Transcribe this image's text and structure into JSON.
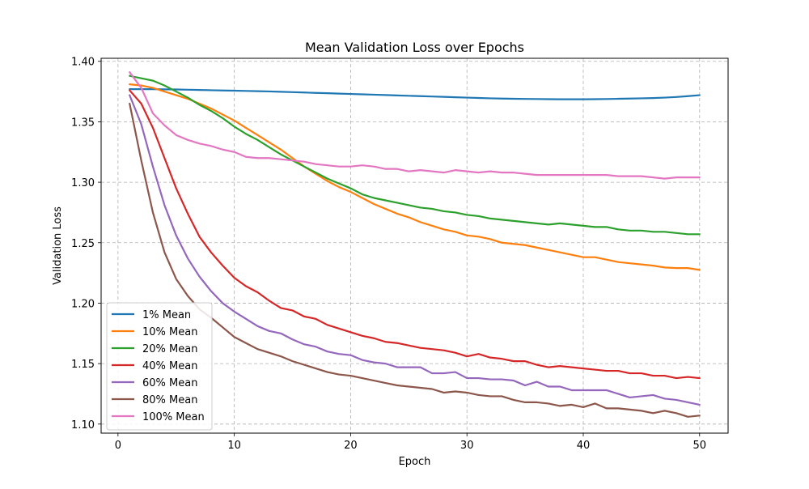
{
  "chart_data": {
    "type": "line",
    "title": "Mean Validation Loss over Epochs",
    "xlabel": "Epoch",
    "ylabel": "Validation Loss",
    "xlim": [
      -1.45,
      52.45
    ],
    "ylim": [
      1.0925,
      1.4025
    ],
    "xticks": [
      0,
      10,
      20,
      30,
      40,
      50
    ],
    "yticks": [
      1.1,
      1.15,
      1.2,
      1.25,
      1.3,
      1.35,
      1.4
    ],
    "grid": true,
    "legend_position": "lower-left",
    "x": [
      1,
      2,
      3,
      4,
      5,
      6,
      7,
      8,
      9,
      10,
      11,
      12,
      13,
      14,
      15,
      16,
      17,
      18,
      19,
      20,
      21,
      22,
      23,
      24,
      25,
      26,
      27,
      28,
      29,
      30,
      31,
      32,
      33,
      34,
      35,
      36,
      37,
      38,
      39,
      40,
      41,
      42,
      43,
      44,
      45,
      46,
      47,
      48,
      49,
      50
    ],
    "series": [
      {
        "name": "1% Mean",
        "color": "#1f77b4",
        "values": [
          1.377,
          1.377,
          1.377,
          1.3768,
          1.3767,
          1.3765,
          1.3763,
          1.3761,
          1.3759,
          1.3757,
          1.3755,
          1.3753,
          1.3751,
          1.3748,
          1.3745,
          1.3742,
          1.3739,
          1.3736,
          1.3733,
          1.373,
          1.3727,
          1.3724,
          1.3721,
          1.3718,
          1.3715,
          1.3712,
          1.3709,
          1.3706,
          1.3703,
          1.37,
          1.3697,
          1.3694,
          1.3692,
          1.369,
          1.3689,
          1.3688,
          1.3687,
          1.3686,
          1.3686,
          1.3686,
          1.3687,
          1.3688,
          1.369,
          1.3692,
          1.3694,
          1.3696,
          1.37,
          1.3705,
          1.3712,
          1.372
        ]
      },
      {
        "name": "10% Mean",
        "color": "#ff7f0e",
        "values": [
          1.381,
          1.38,
          1.378,
          1.375,
          1.372,
          1.369,
          1.365,
          1.361,
          1.356,
          1.351,
          1.345,
          1.339,
          1.333,
          1.327,
          1.32,
          1.313,
          1.307,
          1.301,
          1.296,
          1.292,
          1.287,
          1.282,
          1.278,
          1.274,
          1.271,
          1.267,
          1.264,
          1.261,
          1.259,
          1.256,
          1.255,
          1.253,
          1.25,
          1.249,
          1.248,
          1.246,
          1.244,
          1.242,
          1.24,
          1.238,
          1.238,
          1.236,
          1.234,
          1.233,
          1.232,
          1.231,
          1.2295,
          1.229,
          1.229,
          1.2275
        ]
      },
      {
        "name": "20% Mean",
        "color": "#2ca02c",
        "values": [
          1.388,
          1.386,
          1.384,
          1.38,
          1.375,
          1.37,
          1.364,
          1.359,
          1.353,
          1.346,
          1.34,
          1.335,
          1.329,
          1.323,
          1.318,
          1.313,
          1.308,
          1.303,
          1.299,
          1.295,
          1.29,
          1.287,
          1.285,
          1.283,
          1.281,
          1.279,
          1.278,
          1.276,
          1.275,
          1.273,
          1.272,
          1.27,
          1.269,
          1.268,
          1.267,
          1.266,
          1.265,
          1.266,
          1.265,
          1.264,
          1.263,
          1.263,
          1.261,
          1.26,
          1.26,
          1.259,
          1.259,
          1.258,
          1.257,
          1.257
        ]
      },
      {
        "name": "40% Mean",
        "color": "#d62728",
        "values": [
          1.376,
          1.365,
          1.345,
          1.32,
          1.295,
          1.274,
          1.255,
          1.242,
          1.231,
          1.221,
          1.214,
          1.209,
          1.202,
          1.196,
          1.194,
          1.189,
          1.187,
          1.182,
          1.179,
          1.176,
          1.173,
          1.171,
          1.168,
          1.167,
          1.165,
          1.163,
          1.162,
          1.161,
          1.159,
          1.156,
          1.158,
          1.155,
          1.154,
          1.152,
          1.152,
          1.149,
          1.147,
          1.148,
          1.147,
          1.146,
          1.145,
          1.144,
          1.144,
          1.142,
          1.142,
          1.14,
          1.14,
          1.138,
          1.139,
          1.138
        ]
      },
      {
        "name": "60% Mean",
        "color": "#9467bd",
        "values": [
          1.372,
          1.348,
          1.313,
          1.281,
          1.256,
          1.237,
          1.222,
          1.21,
          1.2,
          1.193,
          1.187,
          1.181,
          1.177,
          1.175,
          1.17,
          1.166,
          1.164,
          1.16,
          1.158,
          1.157,
          1.153,
          1.151,
          1.15,
          1.147,
          1.147,
          1.147,
          1.142,
          1.142,
          1.143,
          1.138,
          1.138,
          1.137,
          1.137,
          1.136,
          1.132,
          1.135,
          1.131,
          1.131,
          1.128,
          1.128,
          1.128,
          1.128,
          1.125,
          1.122,
          1.123,
          1.124,
          1.121,
          1.12,
          1.118,
          1.116
        ]
      },
      {
        "name": "80% Mean",
        "color": "#8c564b",
        "values": [
          1.365,
          1.318,
          1.275,
          1.242,
          1.22,
          1.206,
          1.195,
          1.188,
          1.18,
          1.172,
          1.167,
          1.162,
          1.159,
          1.156,
          1.152,
          1.149,
          1.146,
          1.143,
          1.141,
          1.14,
          1.138,
          1.136,
          1.134,
          1.132,
          1.131,
          1.13,
          1.129,
          1.126,
          1.127,
          1.126,
          1.124,
          1.123,
          1.123,
          1.12,
          1.118,
          1.118,
          1.117,
          1.115,
          1.116,
          1.114,
          1.117,
          1.113,
          1.113,
          1.112,
          1.111,
          1.109,
          1.111,
          1.109,
          1.106,
          1.107
        ]
      },
      {
        "name": "100% Mean",
        "color": "#e377c2",
        "values": [
          1.391,
          1.378,
          1.357,
          1.347,
          1.339,
          1.335,
          1.332,
          1.33,
          1.327,
          1.325,
          1.321,
          1.32,
          1.32,
          1.319,
          1.318,
          1.317,
          1.315,
          1.314,
          1.313,
          1.313,
          1.314,
          1.313,
          1.311,
          1.311,
          1.309,
          1.31,
          1.309,
          1.308,
          1.31,
          1.309,
          1.308,
          1.309,
          1.308,
          1.308,
          1.307,
          1.306,
          1.306,
          1.306,
          1.306,
          1.306,
          1.306,
          1.306,
          1.305,
          1.305,
          1.305,
          1.304,
          1.303,
          1.304,
          1.304,
          1.304
        ]
      }
    ]
  }
}
